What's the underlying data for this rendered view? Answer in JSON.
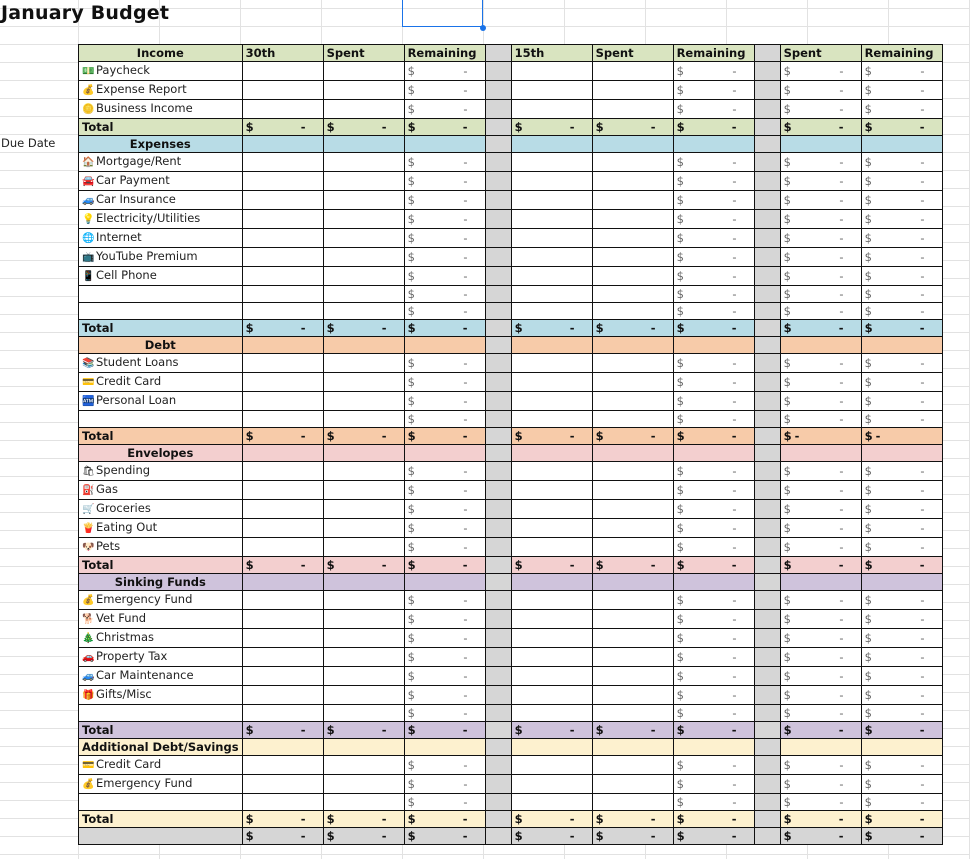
{
  "title": "January Budget",
  "due_date_label": "Due Date",
  "colors": {
    "income": "#d9e4c0",
    "expenses": "#b8dce6",
    "debt": "#f7cba9",
    "envelopes": "#f3cfcf",
    "sinking": "#cfc3dc",
    "additional": "#fdf1cf",
    "gap": "#d6d6d6",
    "selection": "#1a73e8"
  },
  "header": {
    "income": "Income",
    "c1": "30th",
    "c2": "Spent",
    "c3": "Remaining",
    "c4": "15th",
    "c5": "Spent",
    "c6": "Remaining",
    "c7": "Spent",
    "c8": "Remaining"
  },
  "currency": "$",
  "dash": "-",
  "total_label": "Total",
  "sections": {
    "income": {
      "items": [
        {
          "icon": "💵",
          "icon_name": "money-icon",
          "label": "Paycheck"
        },
        {
          "icon": "💰",
          "icon_name": "money-bag-icon",
          "label": "Expense Report"
        },
        {
          "icon": "🪙",
          "icon_name": "coin-icon",
          "label": "Business Income"
        }
      ]
    },
    "expenses": {
      "title": "Expenses",
      "items": [
        {
          "icon": "🏠",
          "icon_name": "house-icon",
          "label": "Mortgage/Rent"
        },
        {
          "icon": "🚘",
          "icon_name": "car-icon",
          "label": "Car Payment"
        },
        {
          "icon": "🚙",
          "icon_name": "suv-icon",
          "label": "Car Insurance"
        },
        {
          "icon": "💡",
          "icon_name": "lightbulb-icon",
          "label": "Electricity/Utilities"
        },
        {
          "icon": "🌐",
          "icon_name": "globe-icon",
          "label": "Internet"
        },
        {
          "icon": "📺",
          "icon_name": "tv-icon",
          "label": "YouTube Premium"
        },
        {
          "icon": "📱",
          "icon_name": "phone-icon",
          "label": "Cell Phone"
        },
        {
          "icon": "",
          "icon_name": "",
          "label": ""
        },
        {
          "icon": "",
          "icon_name": "",
          "label": ""
        }
      ]
    },
    "debt": {
      "title": "Debt",
      "items": [
        {
          "icon": "📚",
          "icon_name": "books-icon",
          "label": "Student Loans"
        },
        {
          "icon": "💳",
          "icon_name": "credit-card-icon",
          "label": "Credit Card"
        },
        {
          "icon": "🏧",
          "icon_name": "atm-icon",
          "label": "Personal Loan"
        },
        {
          "icon": "",
          "icon_name": "",
          "label": ""
        }
      ]
    },
    "envelopes": {
      "title": "Envelopes",
      "items": [
        {
          "icon": "🛍",
          "icon_name": "shopping-bags-icon",
          "label": "Spending"
        },
        {
          "icon": "⛽",
          "icon_name": "fuel-pump-icon",
          "label": "Gas"
        },
        {
          "icon": "🛒",
          "icon_name": "shopping-cart-icon",
          "label": "Groceries"
        },
        {
          "icon": "🍟",
          "icon_name": "fries-icon",
          "label": "Eating Out"
        },
        {
          "icon": "🐶",
          "icon_name": "dog-icon",
          "label": "Pets"
        }
      ]
    },
    "sinking": {
      "title": "Sinking Funds",
      "items": [
        {
          "icon": "💰",
          "icon_name": "money-bag-icon",
          "label": "Emergency Fund"
        },
        {
          "icon": "🐕",
          "icon_name": "dog-icon",
          "label": "Vet Fund"
        },
        {
          "icon": "🎄",
          "icon_name": "christmas-tree-icon",
          "label": "Christmas"
        },
        {
          "icon": "🚗",
          "icon_name": "car-icon",
          "label": "Property Tax"
        },
        {
          "icon": "🚙",
          "icon_name": "suv-icon",
          "label": "Car Maintenance"
        },
        {
          "icon": "🎁",
          "icon_name": "gift-icon",
          "label": "Gifts/Misc"
        },
        {
          "icon": "",
          "icon_name": "",
          "label": ""
        }
      ]
    },
    "additional": {
      "title": "Additional Debt/Savings",
      "items": [
        {
          "icon": "💳",
          "icon_name": "credit-card-icon",
          "label": "Credit Card"
        },
        {
          "icon": "💰",
          "icon_name": "money-bag-icon",
          "label": "Emergency Fund"
        },
        {
          "icon": "",
          "icon_name": "",
          "label": ""
        }
      ]
    }
  }
}
